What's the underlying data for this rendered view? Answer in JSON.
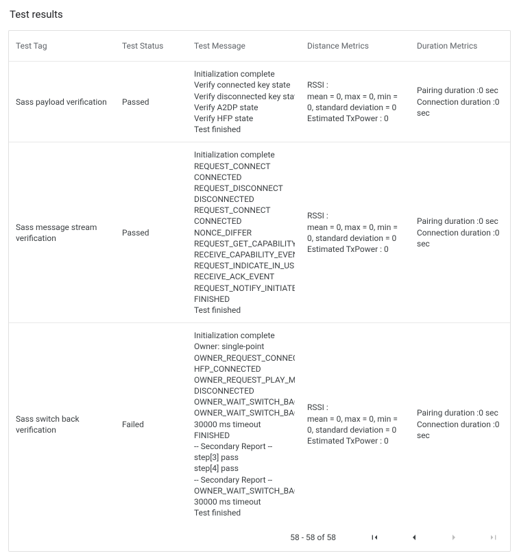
{
  "title": "Test results",
  "columns": [
    "Test Tag",
    "Test Status",
    "Test Message",
    "Distance Metrics",
    "Duration Metrics"
  ],
  "rows": [
    {
      "tag": "Sass payload verification",
      "status": "Passed",
      "message": [
        "Initialization complete",
        "Verify connected key state",
        "Verify disconnected key state",
        "Verify A2DP state",
        "Verify HFP state",
        "Test finished"
      ],
      "distance": [
        "RSSI :",
        "mean = 0, max = 0, min = 0, standard deviation = 0",
        "Estimated TxPower : 0"
      ],
      "duration": [
        "Pairing duration :0 sec",
        "Connection duration :0 sec"
      ]
    },
    {
      "tag": "Sass message stream verification",
      "status": "Passed",
      "message": [
        "Initialization complete",
        "REQUEST_CONNECT",
        "CONNECTED",
        "REQUEST_DISCONNECT",
        "DISCONNECTED",
        "REQUEST_CONNECT",
        "CONNECTED",
        "NONCE_DIFFER",
        "REQUEST_GET_CAPABILITY",
        "RECEIVE_CAPABILITY_EVENT",
        "REQUEST_INDICATE_IN_USE_",
        "RECEIVE_ACK_EVENT",
        "REQUEST_NOTIFY_INITIATED_",
        "FINISHED",
        "Test finished"
      ],
      "distance": [
        "RSSI :",
        "mean = 0, max = 0, min = 0, standard deviation = 0",
        "Estimated TxPower : 0"
      ],
      "duration": [
        "Pairing duration :0 sec",
        "Connection duration :0 sec"
      ]
    },
    {
      "tag": "Sass switch back verification",
      "status": "Failed",
      "message": [
        "Initialization complete",
        "Owner: single-point",
        "OWNER_REQUEST_CONNECT",
        "HFP_CONNECTED",
        "OWNER_REQUEST_PLAY_MED",
        "DISCONNECTED",
        "OWNER_WAIT_SWITCH_BACK",
        "OWNER_WAIT_SWITCH_BACK",
        "30000 ms timeout",
        "FINISHED",
        "-- Secondary Report --",
        "step[3] pass",
        "step[4] pass",
        "-- Secondary Report --",
        "OWNER_WAIT_SWITCH_BACK",
        "30000 ms timeout",
        "Test finished"
      ],
      "distance": [
        "RSSI :",
        "mean = 0, max = 0, min = 0, standard deviation = 0",
        "Estimated TxPower : 0"
      ],
      "duration": [
        "Pairing duration :0 sec",
        "Connection duration :0 sec"
      ]
    }
  ],
  "pager": {
    "range": "58 - 58 of 58",
    "first_enabled": true,
    "prev_enabled": true,
    "next_enabled": false,
    "last_enabled": false
  },
  "colors": {
    "border": "#e0e0e0",
    "row_border": "#e8e8e8",
    "text": "#3c4043",
    "header_text": "#5f6368",
    "disabled": "#bdbdbd"
  }
}
